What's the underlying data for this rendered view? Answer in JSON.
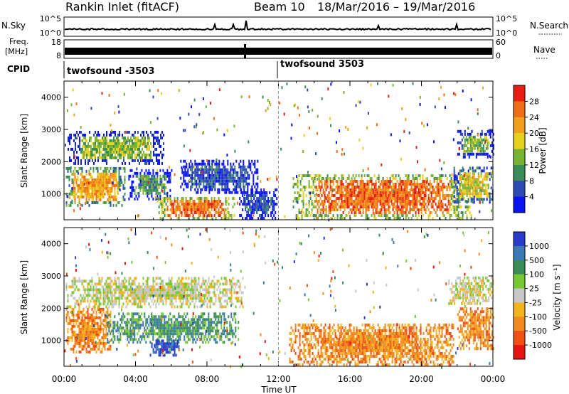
{
  "header": {
    "station": "Rankin Inlet (fitACF)",
    "beam": "Beam 10",
    "date_range": "18/Mar/2016 – 19/Mar/2016"
  },
  "summary_panels": {
    "nsky_label": "N.Sky",
    "nsky_tick_top": "10^5",
    "nsky_tick_bottom": "10^0",
    "nsearch_label": "N.Search",
    "nsearch_tick_top": "10^5",
    "nsearch_tick_bottom": "10^0",
    "freq_label_line1": "Freq.",
    "freq_label_line2": "[MHz]",
    "freq_tick_top": "18",
    "freq_tick_bottom": "8",
    "nave_label": "Nave",
    "nave_tick_top": "60",
    "nave_tick_bottom": "0",
    "cpid_label": "CPID",
    "cpid_left": "twofsound -3503",
    "cpid_right": "twofsound 3503"
  },
  "chart_data": [
    {
      "type": "heatmap",
      "title": "",
      "xlabel": "Time UT",
      "ylabel": "Slant Range [km]",
      "xlim": [
        0,
        24
      ],
      "ylim": [
        200,
        4500
      ],
      "x_tick_labels": [
        "00:00",
        "04:00",
        "08:00",
        "12:00",
        "16:00",
        "20:00",
        "00:00"
      ],
      "y_ticks": [
        1000,
        2000,
        3000,
        4000
      ],
      "colorbar": {
        "label": "Power [dB]",
        "ticks": [
          "4",
          "8",
          "12",
          "16",
          "20",
          "24",
          "28"
        ],
        "colors": [
          "#0a14f0",
          "#2d4bb4",
          "#3c8c5a",
          "#78b432",
          "#e6d21e",
          "#f0a01e",
          "#f06e14",
          "#e61e14"
        ]
      },
      "echo_regions": [
        {
          "t_start": 0.1,
          "t_end": 3.4,
          "r_low": 600,
          "r_high": 1800,
          "value": 24
        },
        {
          "t_start": 0.2,
          "t_end": 5.6,
          "r_low": 1900,
          "r_high": 2900,
          "value": 16
        },
        {
          "t_start": 3.6,
          "t_end": 6.0,
          "r_low": 800,
          "r_high": 1700,
          "value": 12
        },
        {
          "t_start": 5.2,
          "t_end": 9.5,
          "r_low": 200,
          "r_high": 900,
          "value": 26
        },
        {
          "t_start": 6.5,
          "t_end": 10.8,
          "r_low": 1000,
          "r_high": 2000,
          "value": 8
        },
        {
          "t_start": 9.8,
          "t_end": 11.9,
          "r_low": 200,
          "r_high": 1100,
          "value": 8
        },
        {
          "t_start": 12.8,
          "t_end": 22.8,
          "r_low": 200,
          "r_high": 1600,
          "value": 25
        },
        {
          "t_start": 21.8,
          "t_end": 24.0,
          "r_low": 700,
          "r_high": 1800,
          "value": 20
        },
        {
          "t_start": 22.0,
          "t_end": 24.0,
          "r_low": 2100,
          "r_high": 2900,
          "value": 14
        }
      ]
    },
    {
      "type": "heatmap",
      "title": "",
      "xlabel": "Time UT",
      "ylabel": "Slant Range [km]",
      "xlim": [
        0,
        24
      ],
      "ylim": [
        200,
        4500
      ],
      "x_tick_labels": [
        "00:00",
        "04:00",
        "08:00",
        "12:00",
        "16:00",
        "20:00",
        "00:00"
      ],
      "y_ticks": [
        1000,
        2000,
        3000,
        4000
      ],
      "colorbar": {
        "label": "Velocity [m s⁻¹]",
        "ticks": [
          "1000",
          "500",
          "100",
          "25",
          "-25",
          "-100",
          "-500",
          "-1000"
        ],
        "colors": [
          "#283cc8",
          "#3c78b4",
          "#3c8c5a",
          "#78c832",
          "#c8c8c8",
          "#f0b41e",
          "#f08c1e",
          "#f05014",
          "#e61414"
        ]
      },
      "echo_regions": [
        {
          "t_start": 0.1,
          "t_end": 2.6,
          "r_low": 600,
          "r_high": 2000,
          "value": -300
        },
        {
          "t_start": 0.1,
          "t_end": 10.0,
          "r_low": 2000,
          "r_high": 2900,
          "value": 0
        },
        {
          "t_start": 2.4,
          "t_end": 9.8,
          "r_low": 900,
          "r_high": 1800,
          "value": 100
        },
        {
          "t_start": 4.8,
          "t_end": 6.4,
          "r_low": 500,
          "r_high": 1000,
          "value": 1000
        },
        {
          "t_start": 12.6,
          "t_end": 21.8,
          "r_low": 200,
          "r_high": 1500,
          "value": -300
        },
        {
          "t_start": 22.0,
          "t_end": 24.0,
          "r_low": 700,
          "r_high": 2000,
          "value": -300
        },
        {
          "t_start": 21.5,
          "t_end": 24.0,
          "r_low": 2100,
          "r_high": 2900,
          "value": 0
        }
      ]
    }
  ]
}
